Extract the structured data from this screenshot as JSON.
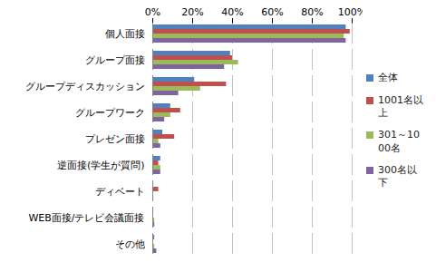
{
  "chart_data": {
    "type": "bar",
    "orientation": "horizontal",
    "categories": [
      "個人面接",
      "グループ面接",
      "グループディスカッション",
      "グループワーク",
      "プレゼン面接",
      "逆面接(学生が質問)",
      "ディベート",
      "WEB面接/テレビ会議面接",
      "その他"
    ],
    "series": [
      {
        "name": "全体",
        "color": "#4F81BD",
        "values": [
          97,
          39,
          21,
          9,
          5,
          4,
          0.5,
          0.5,
          1
        ]
      },
      {
        "name": "1001名以上",
        "color": "#C0504D",
        "values": [
          99,
          40,
          37,
          14,
          11,
          3,
          3,
          0,
          0
        ]
      },
      {
        "name": "301～1000名",
        "color": "#9BBB59",
        "values": [
          96,
          43,
          24,
          9,
          3,
          4,
          0,
          1,
          1
        ]
      },
      {
        "name": "300名以下",
        "color": "#8064A2",
        "values": [
          97,
          36,
          13,
          6,
          4,
          4,
          0.5,
          1,
          2
        ]
      }
    ],
    "xlim": [
      0,
      100
    ],
    "xticks": [
      {
        "value": 0,
        "label": "0%"
      },
      {
        "value": 20,
        "label": "20%"
      },
      {
        "value": 40,
        "label": "40%"
      },
      {
        "value": 60,
        "label": "60%"
      },
      {
        "value": 80,
        "label": "80%"
      },
      {
        "value": 100,
        "label": "100%"
      }
    ],
    "grid": true,
    "legend": "right"
  }
}
